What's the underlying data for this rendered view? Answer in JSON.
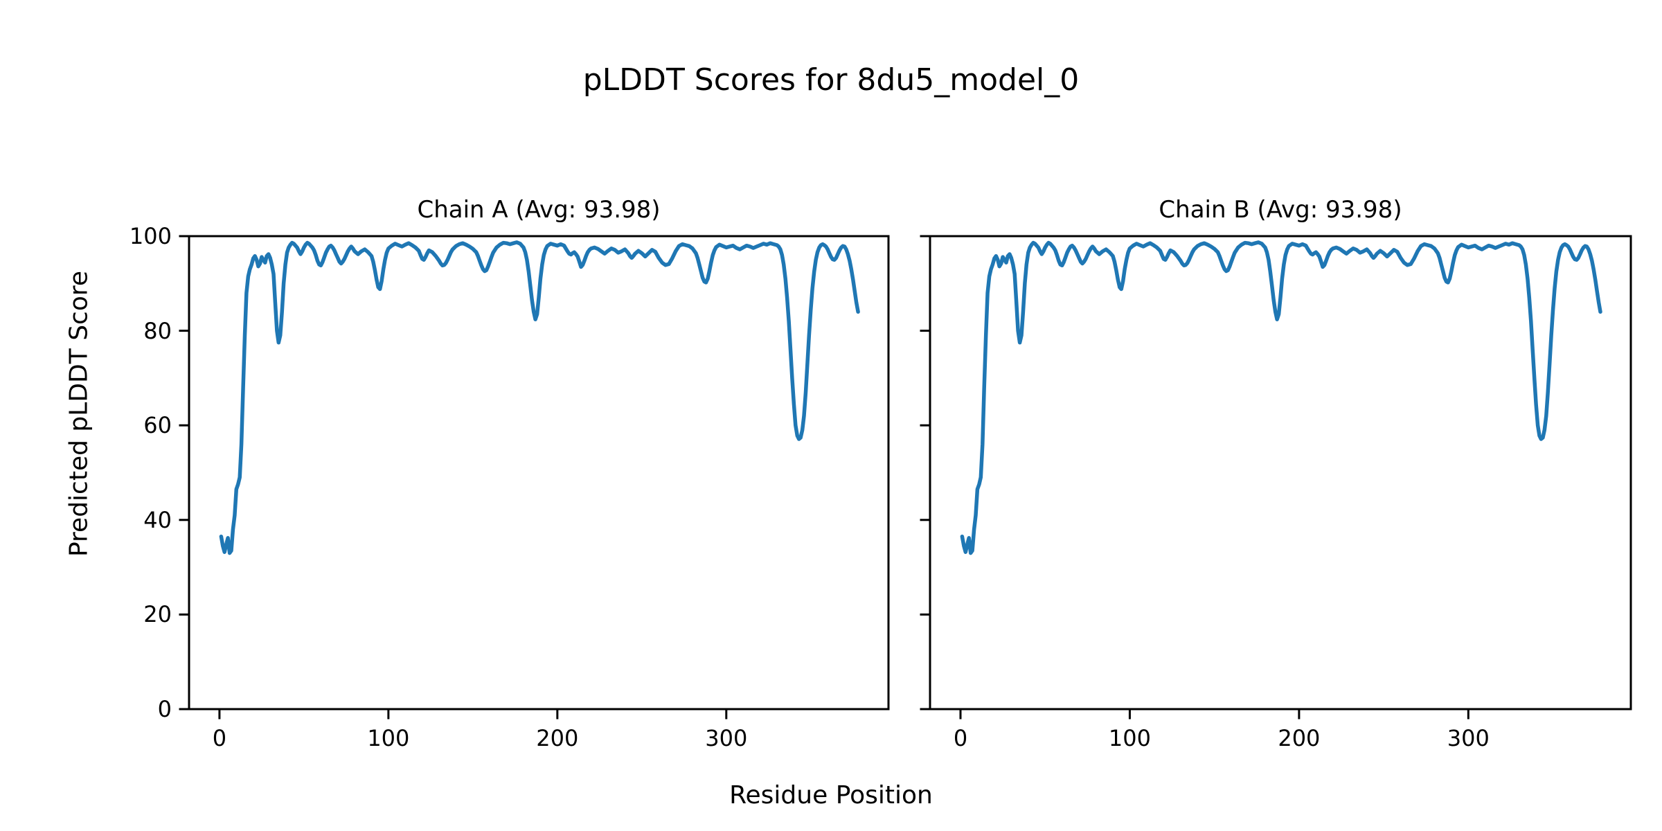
{
  "chart_data": {
    "type": "line",
    "suptitle": "pLDDT Scores for 8du5_model_0",
    "xlabel": "Residue Position",
    "ylabel": "Predicted pLDDT Score",
    "xlim": [
      -18,
      396
    ],
    "ylim": [
      0,
      100
    ],
    "xticks": [
      0,
      100,
      200,
      300
    ],
    "yticks": [
      0,
      20,
      40,
      60,
      80,
      100
    ],
    "grid": false,
    "legend": "none",
    "line_color": "#1f77b4",
    "subplots": [
      {
        "chain": "A",
        "title": "Chain A (Avg: 93.98)",
        "avg": 93.98,
        "show_y_tick_labels": true
      },
      {
        "chain": "B",
        "title": "Chain B (Avg: 93.98)",
        "avg": 93.98,
        "show_y_tick_labels": false
      }
    ],
    "points_shared_by_both_chains": true,
    "points": [
      [
        1,
        36.5
      ],
      [
        2,
        34.5
      ],
      [
        3,
        33.2
      ],
      [
        4,
        34.8
      ],
      [
        5,
        36.2
      ],
      [
        6,
        33.0
      ],
      [
        7,
        33.5
      ],
      [
        8,
        38
      ],
      [
        9,
        41
      ],
      [
        10,
        46.5
      ],
      [
        11,
        47.5
      ],
      [
        12,
        49
      ],
      [
        13,
        56
      ],
      [
        14,
        68
      ],
      [
        15,
        79
      ],
      [
        16,
        88
      ],
      [
        17,
        91.5
      ],
      [
        18,
        93
      ],
      [
        19,
        94
      ],
      [
        20,
        95.3
      ],
      [
        21,
        95.8
      ],
      [
        22,
        95
      ],
      [
        23,
        93.6
      ],
      [
        24,
        94.2
      ],
      [
        25,
        95.6
      ],
      [
        26,
        95
      ],
      [
        27,
        94.4
      ],
      [
        28,
        95.8
      ],
      [
        29,
        96.2
      ],
      [
        30,
        95.4
      ],
      [
        31,
        94
      ],
      [
        32,
        92
      ],
      [
        33,
        86
      ],
      [
        34,
        80
      ],
      [
        35,
        77.5
      ],
      [
        36,
        79
      ],
      [
        37,
        84
      ],
      [
        38,
        90
      ],
      [
        39,
        94
      ],
      [
        40,
        96.5
      ],
      [
        41,
        97.6
      ],
      [
        42,
        98.2
      ],
      [
        43,
        98.6
      ],
      [
        44,
        98.4
      ],
      [
        45,
        98
      ],
      [
        46,
        97.6
      ],
      [
        47,
        96.8
      ],
      [
        48,
        96.2
      ],
      [
        49,
        96.8
      ],
      [
        50,
        97.6
      ],
      [
        51,
        98.2
      ],
      [
        52,
        98.6
      ],
      [
        53,
        98.4
      ],
      [
        54,
        98
      ],
      [
        55,
        97.6
      ],
      [
        56,
        97
      ],
      [
        57,
        96
      ],
      [
        58,
        94.8
      ],
      [
        59,
        94
      ],
      [
        60,
        93.8
      ],
      [
        61,
        94.5
      ],
      [
        62,
        95.5
      ],
      [
        63,
        96.5
      ],
      [
        64,
        97.2
      ],
      [
        65,
        97.8
      ],
      [
        66,
        98
      ],
      [
        67,
        97.6
      ],
      [
        68,
        97
      ],
      [
        69,
        96.2
      ],
      [
        70,
        95.4
      ],
      [
        71,
        94.6
      ],
      [
        72,
        94.2
      ],
      [
        73,
        94.6
      ],
      [
        74,
        95.2
      ],
      [
        75,
        96
      ],
      [
        76,
        96.8
      ],
      [
        77,
        97.4
      ],
      [
        78,
        97.8
      ],
      [
        79,
        97.4
      ],
      [
        80,
        96.8
      ],
      [
        82,
        96.2
      ],
      [
        84,
        96.8
      ],
      [
        86,
        97.2
      ],
      [
        88,
        96.6
      ],
      [
        90,
        95.8
      ],
      [
        91,
        94.6
      ],
      [
        92,
        92.8
      ],
      [
        93,
        90.8
      ],
      [
        94,
        89.2
      ],
      [
        95,
        88.8
      ],
      [
        96,
        90.5
      ],
      [
        97,
        93
      ],
      [
        98,
        95
      ],
      [
        99,
        96.5
      ],
      [
        100,
        97.4
      ],
      [
        102,
        98
      ],
      [
        104,
        98.4
      ],
      [
        106,
        98.1
      ],
      [
        108,
        97.8
      ],
      [
        110,
        98.2
      ],
      [
        112,
        98.5
      ],
      [
        114,
        98.1
      ],
      [
        116,
        97.6
      ],
      [
        118,
        96.9
      ],
      [
        119,
        96
      ],
      [
        120,
        95.2
      ],
      [
        121,
        95
      ],
      [
        122,
        95.6
      ],
      [
        123,
        96.4
      ],
      [
        124,
        97
      ],
      [
        126,
        96.6
      ],
      [
        128,
        95.8
      ],
      [
        130,
        94.8
      ],
      [
        131,
        94.2
      ],
      [
        132,
        93.8
      ],
      [
        133,
        93.9
      ],
      [
        134,
        94.3
      ],
      [
        135,
        95
      ],
      [
        136,
        95.8
      ],
      [
        137,
        96.6
      ],
      [
        138,
        97.2
      ],
      [
        140,
        97.9
      ],
      [
        142,
        98.3
      ],
      [
        144,
        98.5
      ],
      [
        146,
        98.2
      ],
      [
        148,
        97.8
      ],
      [
        150,
        97.3
      ],
      [
        152,
        96.6
      ],
      [
        153,
        95.8
      ],
      [
        154,
        94.8
      ],
      [
        155,
        93.8
      ],
      [
        156,
        93
      ],
      [
        157,
        92.6
      ],
      [
        158,
        92.8
      ],
      [
        159,
        93.6
      ],
      [
        160,
        94.6
      ],
      [
        161,
        95.6
      ],
      [
        162,
        96.5
      ],
      [
        164,
        97.6
      ],
      [
        166,
        98.2
      ],
      [
        168,
        98.6
      ],
      [
        170,
        98.5
      ],
      [
        172,
        98.3
      ],
      [
        174,
        98.5
      ],
      [
        176,
        98.7
      ],
      [
        178,
        98.4
      ],
      [
        180,
        97.6
      ],
      [
        181,
        96.6
      ],
      [
        182,
        95
      ],
      [
        183,
        92.5
      ],
      [
        184,
        89.5
      ],
      [
        185,
        86.5
      ],
      [
        186,
        84
      ],
      [
        187,
        82.4
      ],
      [
        188,
        83.5
      ],
      [
        189,
        87
      ],
      [
        190,
        91
      ],
      [
        191,
        94
      ],
      [
        192,
        96
      ],
      [
        193,
        97.2
      ],
      [
        194,
        97.9
      ],
      [
        196,
        98.4
      ],
      [
        198,
        98.2
      ],
      [
        200,
        98
      ],
      [
        202,
        98.3
      ],
      [
        204,
        98
      ],
      [
        205,
        97.4
      ],
      [
        206,
        96.8
      ],
      [
        207,
        96.3
      ],
      [
        208,
        96.1
      ],
      [
        209,
        96.4
      ],
      [
        210,
        96.6
      ],
      [
        211,
        96.2
      ],
      [
        212,
        95.7
      ],
      [
        213,
        94.6
      ],
      [
        214,
        93.5
      ],
      [
        215,
        93.9
      ],
      [
        216,
        94.8
      ],
      [
        217,
        95.8
      ],
      [
        218,
        96.6
      ],
      [
        219,
        97.1
      ],
      [
        220,
        97.4
      ],
      [
        222,
        97.6
      ],
      [
        224,
        97.3
      ],
      [
        226,
        96.8
      ],
      [
        228,
        96.3
      ],
      [
        230,
        96.9
      ],
      [
        232,
        97.4
      ],
      [
        234,
        97.1
      ],
      [
        236,
        96.5
      ],
      [
        238,
        96.8
      ],
      [
        240,
        97.2
      ],
      [
        242,
        96.4
      ],
      [
        243,
        95.8
      ],
      [
        244,
        95.4
      ],
      [
        245,
        95.8
      ],
      [
        246,
        96.3
      ],
      [
        248,
        96.9
      ],
      [
        250,
        96.4
      ],
      [
        252,
        95.7
      ],
      [
        254,
        96.4
      ],
      [
        256,
        97.1
      ],
      [
        258,
        96.7
      ],
      [
        260,
        95.4
      ],
      [
        262,
        94.4
      ],
      [
        264,
        93.9
      ],
      [
        266,
        94.1
      ],
      [
        268,
        95.3
      ],
      [
        270,
        96.8
      ],
      [
        272,
        97.9
      ],
      [
        274,
        98.3
      ],
      [
        276,
        98.1
      ],
      [
        278,
        97.9
      ],
      [
        280,
        97.4
      ],
      [
        282,
        96.4
      ],
      [
        283,
        95.4
      ],
      [
        284,
        94
      ],
      [
        285,
        92.6
      ],
      [
        286,
        91.2
      ],
      [
        287,
        90.4
      ],
      [
        288,
        90.2
      ],
      [
        289,
        91
      ],
      [
        290,
        92.6
      ],
      [
        291,
        94.4
      ],
      [
        292,
        96
      ],
      [
        293,
        97
      ],
      [
        294,
        97.7
      ],
      [
        296,
        98.2
      ],
      [
        298,
        97.9
      ],
      [
        300,
        97.6
      ],
      [
        302,
        97.8
      ],
      [
        304,
        98
      ],
      [
        306,
        97.5
      ],
      [
        308,
        97.2
      ],
      [
        310,
        97.6
      ],
      [
        312,
        98
      ],
      [
        314,
        97.8
      ],
      [
        316,
        97.5
      ],
      [
        318,
        97.8
      ],
      [
        320,
        98.1
      ],
      [
        322,
        98.4
      ],
      [
        324,
        98.2
      ],
      [
        326,
        98.5
      ],
      [
        328,
        98.3
      ],
      [
        330,
        98.1
      ],
      [
        331,
        97.8
      ],
      [
        332,
        97.2
      ],
      [
        333,
        96
      ],
      [
        334,
        94
      ],
      [
        335,
        91
      ],
      [
        336,
        87
      ],
      [
        337,
        82
      ],
      [
        338,
        76
      ],
      [
        339,
        70
      ],
      [
        340,
        64.5
      ],
      [
        341,
        60
      ],
      [
        342,
        57.8
      ],
      [
        343,
        57.1
      ],
      [
        344,
        57.4
      ],
      [
        345,
        59
      ],
      [
        346,
        62
      ],
      [
        347,
        67
      ],
      [
        348,
        73
      ],
      [
        349,
        79
      ],
      [
        350,
        84.5
      ],
      [
        351,
        89
      ],
      [
        352,
        92.5
      ],
      [
        353,
        95
      ],
      [
        354,
        96.6
      ],
      [
        355,
        97.6
      ],
      [
        356,
        98.1
      ],
      [
        357,
        98.3
      ],
      [
        358,
        98.1
      ],
      [
        359,
        97.8
      ],
      [
        360,
        97.2
      ],
      [
        361,
        96.4
      ],
      [
        362,
        95.6
      ],
      [
        363,
        95.1
      ],
      [
        364,
        95
      ],
      [
        365,
        95.4
      ],
      [
        366,
        96.2
      ],
      [
        367,
        97
      ],
      [
        368,
        97.6
      ],
      [
        369,
        97.9
      ],
      [
        370,
        97.8
      ],
      [
        371,
        97.2
      ],
      [
        372,
        96.2
      ],
      [
        373,
        94.8
      ],
      [
        374,
        93
      ],
      [
        375,
        90.8
      ],
      [
        376,
        88.4
      ],
      [
        377,
        86
      ],
      [
        378,
        84
      ]
    ]
  }
}
